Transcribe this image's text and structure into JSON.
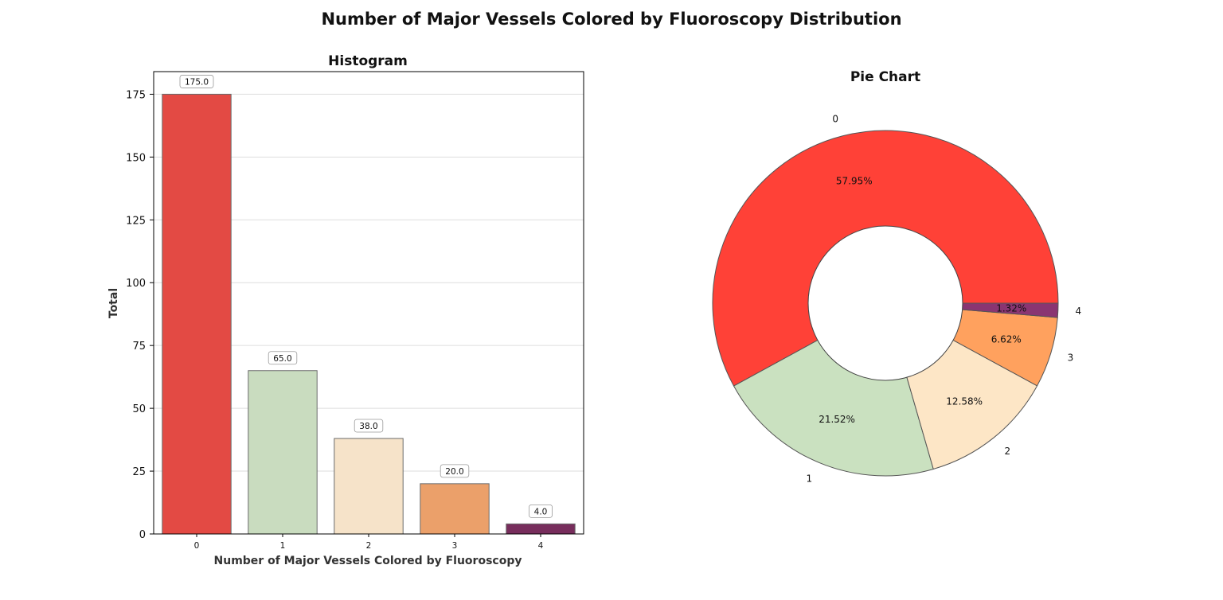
{
  "figure": {
    "title": "Number of Major Vessels Colored by Fluoroscopy Distribution"
  },
  "chart_data": [
    {
      "type": "bar",
      "title": "Histogram",
      "xlabel": "Number of Major Vessels Colored by Fluoroscopy",
      "ylabel": "Total",
      "categories": [
        "0",
        "1",
        "2",
        "3",
        "4"
      ],
      "values": [
        175,
        65,
        38,
        20,
        4
      ],
      "data_labels": [
        "175.0",
        "65.0",
        "38.0",
        "20.0",
        "4.0"
      ],
      "colors": [
        "#e34a44",
        "#c9dcbf",
        "#f6e3c9",
        "#eba06a",
        "#772d5c"
      ],
      "ylim": [
        0,
        184
      ],
      "yticks": [
        0,
        25,
        50,
        75,
        100,
        125,
        150,
        175
      ],
      "grid": "y"
    },
    {
      "type": "pie",
      "title": "Pie Chart",
      "donut": true,
      "labels": [
        "0",
        "1",
        "2",
        "3",
        "4"
      ],
      "values": [
        57.95,
        21.52,
        12.58,
        6.62,
        1.32
      ],
      "pct_labels": [
        "57.95%",
        "21.52%",
        "12.58%",
        "6.62%",
        "1.32%"
      ],
      "colors": [
        "#ff4137",
        "#cae1c0",
        "#fde6c6",
        "#ffa15e",
        "#8a3572"
      ]
    }
  ]
}
